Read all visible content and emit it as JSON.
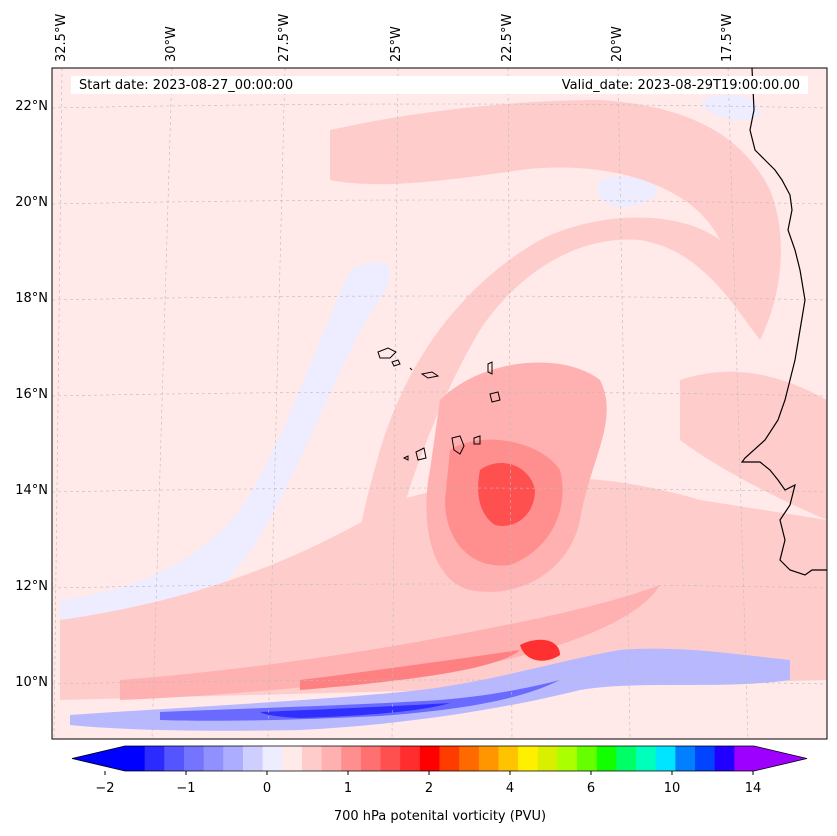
{
  "map": {
    "start_date": "Start date: 2023-08-27_00:00:00",
    "valid_date": "Valid_date: 2023-08-29T19:00:00.00",
    "lon_labels": [
      "32.5°W",
      "30°W",
      "27.5°W",
      "25°W",
      "22.5°W",
      "20°W",
      "17.5°W"
    ],
    "lat_labels": [
      "22°N",
      "20°N",
      "18°N",
      "16°N",
      "14°N",
      "12°N",
      "10°N"
    ]
  },
  "colorbar": {
    "title": "700 hPa potenital vorticity (PVU)",
    "tick_labels": [
      "−2",
      "−1",
      "0",
      "1",
      "2",
      "4",
      "6",
      "10",
      "14"
    ],
    "colors": [
      "#0000ff",
      "#2b2bff",
      "#5555ff",
      "#7474ff",
      "#9090ff",
      "#adadff",
      "#cfcfff",
      "#ededff",
      "#ffeaea",
      "#ffcccc",
      "#ffb0b0",
      "#ff8f8f",
      "#ff7070",
      "#ff5050",
      "#ff2d2d",
      "#ff0000",
      "#ff3c00",
      "#ff6a00",
      "#ff9600",
      "#ffc300",
      "#fff000",
      "#d8f000",
      "#aaff00",
      "#66ff00",
      "#11ff00",
      "#00ff66",
      "#00ffbb",
      "#00e5ff",
      "#007fff",
      "#0044ff",
      "#2200ff",
      "#9d00ff"
    ]
  },
  "legend_colors": {
    "background": "#ffe9e9",
    "coastline": "#000000"
  }
}
